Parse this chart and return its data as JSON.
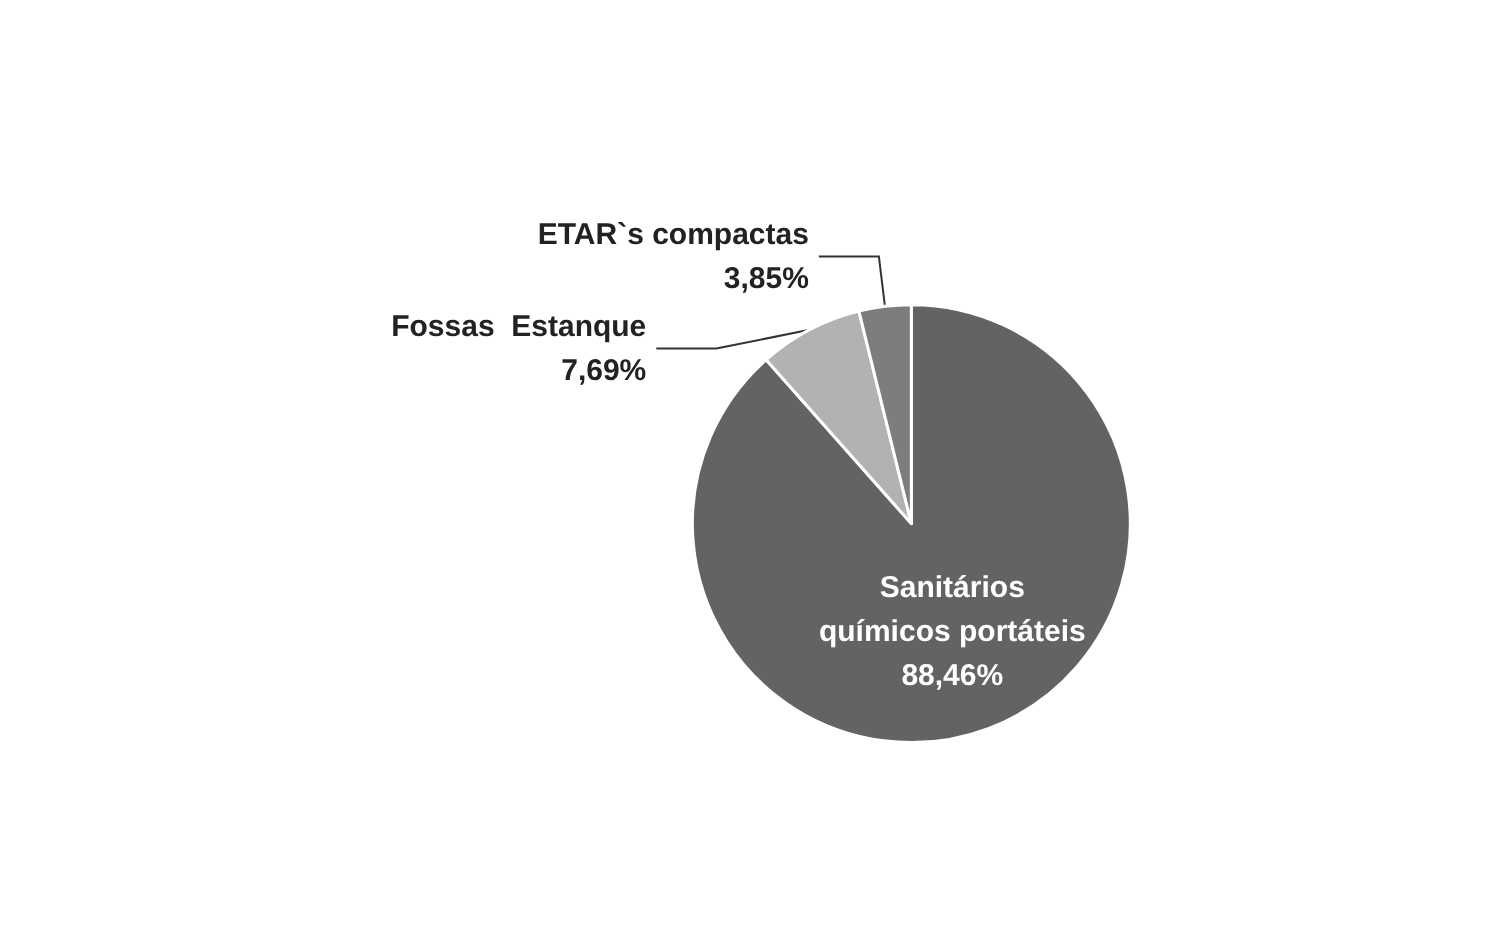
{
  "chart_data": {
    "type": "pie",
    "categories": [
      "Sanitários\nquímicos portáteis",
      "Fossas  Estanque",
      "ETAR`s compactas"
    ],
    "values": [
      88.46,
      7.69,
      3.85
    ],
    "value_labels": [
      "88,46%",
      "7,69%",
      "3,85%"
    ],
    "colors": [
      "#636363",
      "#b2b2b2",
      "#7d7d7d"
    ],
    "legend": false
  }
}
